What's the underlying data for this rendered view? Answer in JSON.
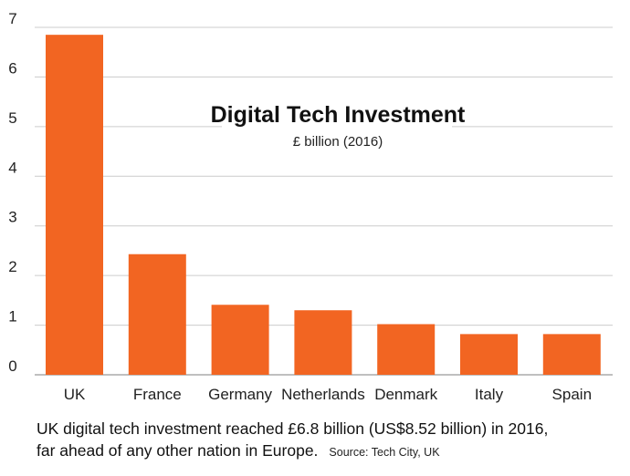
{
  "chart_data": {
    "type": "bar",
    "title": "Digital Tech Investment",
    "subtitle": "£ billion (2016)",
    "categories": [
      "UK",
      "France",
      "Germany",
      "Netherlands",
      "Denmark",
      "Italy",
      "Spain"
    ],
    "values": [
      6.85,
      2.43,
      1.41,
      1.3,
      1.02,
      0.82,
      0.82
    ],
    "ylim": [
      0,
      7
    ],
    "yticks": [
      "0",
      "1",
      "2",
      "3",
      "4",
      "5",
      "6",
      "7"
    ],
    "grid": true,
    "bar_color": "#f26522",
    "grid_color": "#cccccc"
  },
  "caption": {
    "line1": "UK digital tech investment reached £6.8 billion (US$8.52 billion) in 2016,",
    "line2": "far ahead of any other nation in Europe.",
    "source": "Source: Tech City, UK"
  }
}
